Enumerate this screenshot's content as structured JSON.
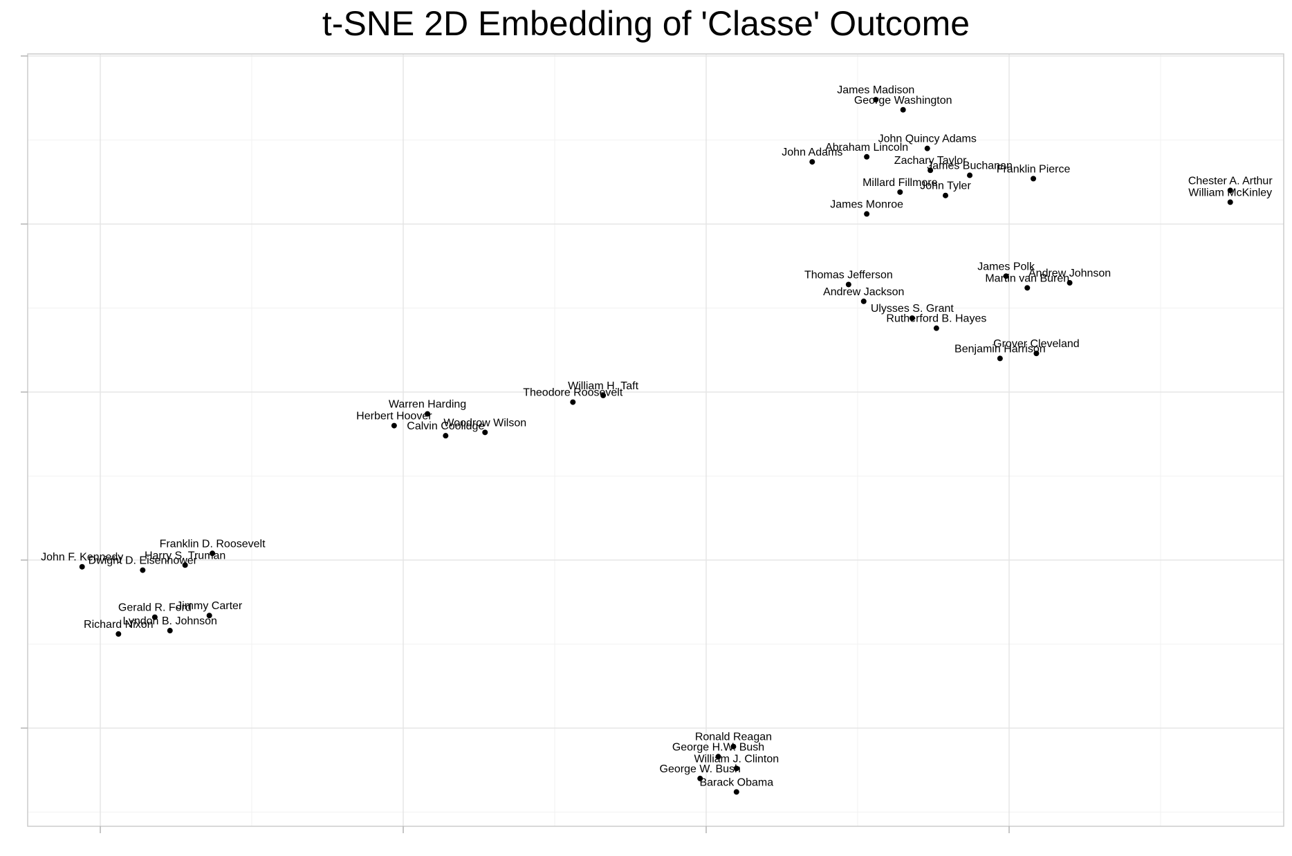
{
  "chart_data": {
    "type": "scatter",
    "title": "t-SNE 2D Embedding of 'Classe' Outcome",
    "xlabel": "",
    "ylabel": "",
    "xlim": [
      -0.25,
      3.9
    ],
    "ylim": [
      -0.6,
      4.0
    ],
    "grid": true,
    "legend": "none",
    "point_color": "#000000",
    "grid_color": "#e5e5e5",
    "minor_grid_color": "#f2f2f2",
    "x_major_ticks": [
      0,
      1,
      2,
      3
    ],
    "x_minor_ticks": [
      0.5,
      1.5,
      2.5,
      3.5
    ],
    "y_major_ticks": [
      0,
      1,
      2,
      3,
      4
    ],
    "y_minor_ticks": [
      -0.5,
      0.5,
      1.5,
      2.5,
      3.5
    ],
    "points": [
      {
        "name": "James Madison",
        "x": 2.56,
        "y": 3.74
      },
      {
        "name": "George Washington",
        "x": 2.65,
        "y": 3.68
      },
      {
        "name": "John Quincy Adams",
        "x": 2.73,
        "y": 3.45
      },
      {
        "name": "Abraham Lincoln",
        "x": 2.53,
        "y": 3.4
      },
      {
        "name": "John Adams",
        "x": 2.35,
        "y": 3.37
      },
      {
        "name": "Zachary Taylor",
        "x": 2.74,
        "y": 3.32
      },
      {
        "name": "James Buchanan",
        "x": 2.87,
        "y": 3.29
      },
      {
        "name": "Franklin Pierce",
        "x": 3.08,
        "y": 3.27
      },
      {
        "name": "Millard Fillmore",
        "x": 2.64,
        "y": 3.19
      },
      {
        "name": "John Tyler",
        "x": 2.79,
        "y": 3.17
      },
      {
        "name": "James Monroe",
        "x": 2.53,
        "y": 3.06
      },
      {
        "name": "Chester A. Arthur",
        "x": 3.73,
        "y": 3.2
      },
      {
        "name": "William McKinley",
        "x": 3.73,
        "y": 3.13
      },
      {
        "name": "James Polk",
        "x": 2.99,
        "y": 2.69
      },
      {
        "name": "Andrew Johnson",
        "x": 3.2,
        "y": 2.65
      },
      {
        "name": "Martin van Buren",
        "x": 3.06,
        "y": 2.62
      },
      {
        "name": "Thomas Jefferson",
        "x": 2.47,
        "y": 2.64
      },
      {
        "name": "Andrew Jackson",
        "x": 2.52,
        "y": 2.54
      },
      {
        "name": "Ulysses S. Grant",
        "x": 2.68,
        "y": 2.44
      },
      {
        "name": "Rutherford B. Hayes",
        "x": 2.76,
        "y": 2.38
      },
      {
        "name": "Grover Cleveland",
        "x": 3.09,
        "y": 2.23
      },
      {
        "name": "Benjamin Harrison",
        "x": 2.97,
        "y": 2.2
      },
      {
        "name": "William H. Taft",
        "x": 1.66,
        "y": 1.98
      },
      {
        "name": "Theodore Roosevelt",
        "x": 1.56,
        "y": 1.94
      },
      {
        "name": "Warren Harding",
        "x": 1.08,
        "y": 1.87
      },
      {
        "name": "Herbert Hoover",
        "x": 0.97,
        "y": 1.8
      },
      {
        "name": "Calvin Coolidge",
        "x": 1.14,
        "y": 1.74
      },
      {
        "name": "Woodrow Wilson",
        "x": 1.27,
        "y": 1.76
      },
      {
        "name": "Franklin D. Roosevelt",
        "x": 0.37,
        "y": 1.04
      },
      {
        "name": "Harry S. Truman",
        "x": 0.28,
        "y": 0.97
      },
      {
        "name": "John F. Kennedy",
        "x": -0.06,
        "y": 0.96
      },
      {
        "name": "Dwight D. Eisenhower",
        "x": 0.14,
        "y": 0.94
      },
      {
        "name": "Jimmy Carter",
        "x": 0.36,
        "y": 0.67
      },
      {
        "name": "Gerald R. Ford",
        "x": 0.18,
        "y": 0.66
      },
      {
        "name": "Lyndon B. Johnson",
        "x": 0.23,
        "y": 0.58
      },
      {
        "name": "Richard Nixon",
        "x": 0.06,
        "y": 0.56
      },
      {
        "name": "Ronald Reagan",
        "x": 2.09,
        "y": -0.11
      },
      {
        "name": "George H.W. Bush",
        "x": 2.04,
        "y": -0.17
      },
      {
        "name": "William J. Clinton",
        "x": 2.1,
        "y": -0.24
      },
      {
        "name": "George W. Bush",
        "x": 1.98,
        "y": -0.3
      },
      {
        "name": "Barack Obama",
        "x": 2.1,
        "y": -0.38
      }
    ]
  }
}
